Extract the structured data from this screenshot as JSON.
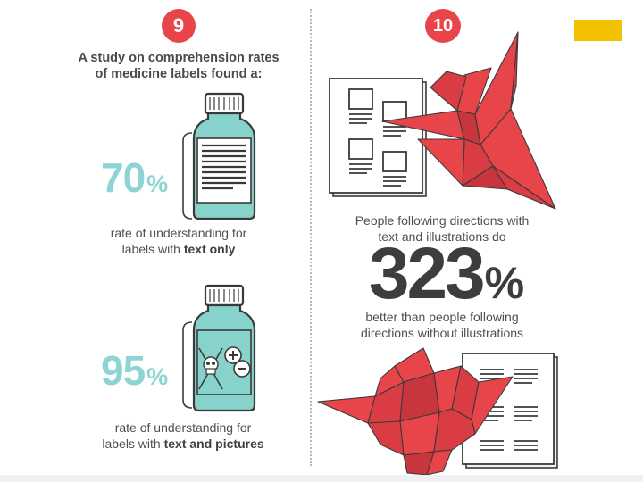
{
  "section9": {
    "badge": "9",
    "intro_line1": "A study on comprehension rates",
    "intro_line2": "of medicine labels found a:",
    "stat1": {
      "value": "70",
      "symbol": "%",
      "caption_line1": "rate of understanding for",
      "caption_prefix": "labels with ",
      "caption_bold": "text only"
    },
    "stat2": {
      "value": "95",
      "symbol": "%",
      "caption_line1": "rate of understanding for",
      "caption_prefix": "labels with ",
      "caption_bold": "text and pictures"
    }
  },
  "section10": {
    "badge": "10",
    "text_line1": "People following directions with",
    "text_line2": "text and illustrations do",
    "value": "323",
    "symbol": "%",
    "text_line3": "better than people following",
    "text_line4": "directions without illustrations"
  },
  "colors": {
    "accent_red": "#e8454b",
    "teal": "#8fd4d4",
    "bottle_fill": "#88d2cc",
    "dark_outline": "#3a3a3a",
    "crane_red": "#e8454b",
    "crane_dark": "#c9353c",
    "yellow_tab": "#f2c200"
  },
  "icons": {
    "bottle1": "medicine-bottle-icon",
    "bottle2": "medicine-bottle-pictogram-icon",
    "bracket": "bracket-icon",
    "skull": "skull-icon",
    "plus": "plus-circle-icon",
    "minus": "minus-circle-icon",
    "crane": "origami-crane-icon",
    "document": "instruction-sheet-icon"
  }
}
